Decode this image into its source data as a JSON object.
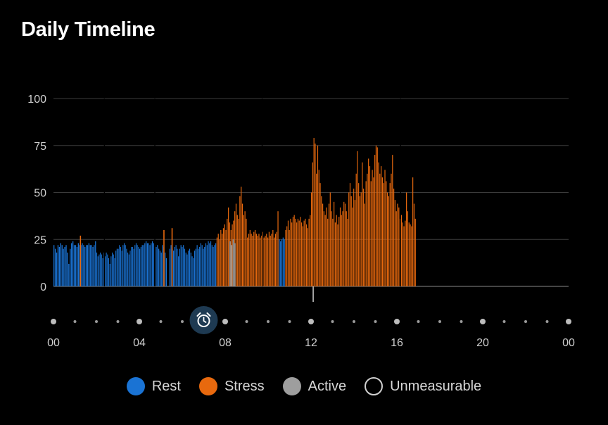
{
  "header": {
    "title": "Daily Timeline"
  },
  "colors": {
    "rest": "#1a73d4",
    "stress": "#e8690e",
    "active": "#9e9e9e",
    "unmeasurable_border": "#d0d0d0",
    "gridline": "#3c3c3c",
    "alarm_badge": "#1e3a52"
  },
  "marker_icons": [
    "alarm-clock-icon"
  ],
  "chart_data": {
    "type": "bar",
    "title": "Daily Timeline",
    "xlabel": "",
    "ylabel": "",
    "ylim": [
      0,
      100
    ],
    "yticks": [
      0,
      25,
      50,
      75,
      100
    ],
    "xlim_hours": [
      0,
      24
    ],
    "xtick_labels": [
      "00",
      "04",
      "08",
      "12",
      "16",
      "20",
      "00"
    ],
    "grid": true,
    "legend_position": "bottom",
    "legend": [
      "Rest",
      "Stress",
      "Active",
      "Unmeasurable"
    ],
    "series": [
      {
        "name": "Rest",
        "color": "#1a73d4",
        "segments": [
          {
            "start_hour": 0.0,
            "end_hour": 1.2,
            "values": [
              22,
              20,
              18,
              22,
              21,
              23,
              22,
              20,
              21,
              22,
              18,
              12,
              20,
              23,
              24,
              22,
              22,
              21,
              23
            ]
          },
          {
            "start_hour": 1.2,
            "end_hour": 2.0,
            "values": [
              22,
              22,
              23,
              22,
              21,
              22,
              22,
              23,
              22,
              22,
              21,
              22,
              24
            ]
          },
          {
            "start_hour": 2.0,
            "end_hour": 3.0,
            "values": [
              18,
              16,
              17,
              18,
              17,
              15,
              18,
              16,
              18,
              17,
              15,
              12,
              16,
              18,
              17,
              15,
              19,
              20
            ]
          },
          {
            "start_hour": 3.0,
            "end_hour": 4.0,
            "values": [
              20,
              22,
              21,
              19,
              22,
              23,
              22,
              20,
              18,
              17,
              19,
              21,
              21,
              20,
              22,
              23,
              22,
              21
            ]
          },
          {
            "start_hour": 4.0,
            "end_hour": 5.3,
            "values": [
              20,
              21,
              22,
              22,
              23,
              24,
              23,
              23,
              22,
              23,
              24,
              23,
              22,
              21,
              22,
              20,
              19,
              18,
              22,
              21,
              18,
              15
            ]
          },
          {
            "start_hour": 5.4,
            "end_hour": 7.6,
            "values": [
              20,
              22,
              20,
              19,
              21,
              22,
              20,
              16,
              20,
              22,
              21,
              22,
              20,
              18,
              17,
              19,
              20,
              18,
              16,
              15,
              19,
              20,
              22,
              20,
              21,
              23,
              22,
              20,
              21,
              23,
              22,
              24,
              23,
              24,
              22,
              21,
              22,
              23
            ]
          },
          {
            "start_hour": 10.5,
            "end_hour": 10.8,
            "values": [
              25,
              24,
              25,
              26,
              25
            ]
          }
        ]
      },
      {
        "name": "Stress",
        "color": "#e8690e",
        "spikes": [
          {
            "hour": 1.23,
            "value": 27
          },
          {
            "hour": 5.12,
            "value": 30
          },
          {
            "hour": 5.5,
            "value": 31
          }
        ],
        "segments": [
          {
            "start_hour": 7.6,
            "end_hour": 10.5,
            "values": [
              26,
              28,
              25,
              30,
              28,
              31,
              33,
              30,
              36,
              42,
              34,
              30,
              33,
              35,
              40,
              44,
              38,
              36,
              48,
              53,
              44,
              38,
              40,
              36,
              26,
              28,
              30,
              28,
              27,
              29,
              30,
              28,
              27,
              28,
              26,
              27,
              29,
              26,
              27,
              28,
              26,
              29,
              27,
              28,
              30,
              26,
              28,
              29,
              40
            ]
          },
          {
            "start_hour": 10.8,
            "end_hour": 12.0,
            "values": [
              30,
              32,
              35,
              30,
              36,
              34,
              37,
              38,
              36,
              34,
              36,
              35,
              37,
              34,
              32,
              35,
              36,
              33,
              31,
              36,
              38
            ]
          },
          {
            "start_hour": 12.0,
            "end_hour": 13.4,
            "values": [
              50,
              66,
              79,
              76,
              60,
              75,
              62,
              55,
              48,
              44,
              40,
              38,
              42,
              36,
              44,
              50,
              40,
              36,
              45,
              34,
              38,
              33,
              37,
              42
            ]
          },
          {
            "start_hour": 13.4,
            "end_hour": 14.6,
            "values": [
              38,
              40,
              45,
              44,
              40,
              36,
              50,
              55,
              48,
              42,
              52,
              46,
              60,
              72,
              55,
              48,
              50,
              66,
              52,
              44,
              56
            ]
          },
          {
            "start_hour": 14.6,
            "end_hour": 15.6,
            "values": [
              60,
              68,
              64,
              56,
              62,
              58,
              70,
              75,
              74,
              66,
              60,
              64,
              58,
              55,
              62,
              56,
              50
            ]
          },
          {
            "start_hour": 15.6,
            "end_hour": 16.9,
            "values": [
              48,
              55,
              60,
              70,
              52,
              46,
              40,
              44,
              42,
              36,
              38,
              34,
              32,
              35,
              50,
              40,
              34,
              33,
              32,
              58,
              44,
              36
            ]
          }
        ]
      },
      {
        "name": "Active",
        "color": "#9e9e9e",
        "segments": [
          {
            "start_hour": 8.2,
            "end_hour": 8.5,
            "values": [
              24,
              22,
              25,
              23
            ]
          }
        ]
      }
    ],
    "markers": [
      {
        "type": "alarm",
        "hour": 7.0,
        "icon": "alarm-clock-icon"
      }
    ]
  },
  "legend_items": [
    {
      "label": "Rest",
      "color": "#1a73d4",
      "style": "filled"
    },
    {
      "label": "Stress",
      "color": "#e8690e",
      "style": "filled"
    },
    {
      "label": "Active",
      "color": "#9e9e9e",
      "style": "filled"
    },
    {
      "label": "Unmeasurable",
      "color": "#d0d0d0",
      "style": "outline"
    }
  ]
}
